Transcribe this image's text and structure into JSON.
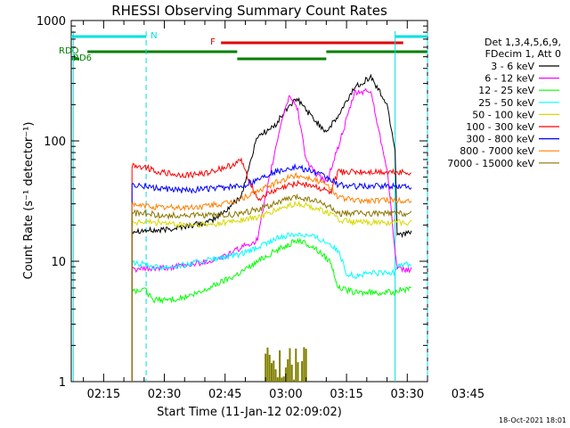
{
  "chart_data": {
    "type": "line",
    "title": "RHESSI Observing Summary Count Rates",
    "xlabel": "Start Time (11-Jan-12 02:09:02)",
    "ylabel": "Count Rate (s⁻¹ detector⁻¹)",
    "yscale": "log",
    "ylim": [
      1,
      1000
    ],
    "xlim_minutes": [
      -8,
      80
    ],
    "x_ticks": [
      "02:15",
      "02:30",
      "02:45",
      "03:00",
      "03:15",
      "03:30",
      "03:45"
    ],
    "x_tick_minutes": [
      0,
      15,
      30,
      45,
      60,
      75,
      90
    ],
    "y_ticks": [
      "1",
      "10",
      "100",
      "1000"
    ],
    "y_tick_values": [
      1,
      10,
      100,
      1000
    ],
    "legend_header": [
      "Det 1,3,4,5,6,9,",
      "FDecim 1, Att 0"
    ],
    "legend_position": "right",
    "flag_bars": [
      {
        "label": "N",
        "color": "#00e0e0",
        "segments": [
          [
            -8,
            10.5
          ],
          [
            72,
            90
          ]
        ],
        "level": "top"
      },
      {
        "label": "F",
        "color": "#e00000",
        "segments": [
          [
            29,
            74
          ]
        ],
        "level": "f"
      },
      {
        "label": "RDO",
        "color": "#008000",
        "segments": [
          [
            -4,
            33
          ],
          [
            55,
            80
          ]
        ],
        "level": "rdo"
      },
      {
        "label": "RD6",
        "color": "#008000",
        "segments": [
          [
            -8,
            -6
          ],
          [
            33,
            55
          ],
          [
            80,
            90
          ]
        ],
        "level": "rd6"
      }
    ],
    "vlines": [
      {
        "x": -7.5,
        "color": "#00e0e0",
        "style": "solid"
      },
      {
        "x": 10.5,
        "color": "#00e0e0",
        "style": "dashed"
      },
      {
        "x": 72,
        "color": "#00e0e0",
        "style": "solid"
      },
      {
        "x": 91,
        "color": "#00e0e0",
        "style": "dashed"
      }
    ],
    "series": [
      {
        "name": "3 - 6 keV",
        "color": "#000000",
        "x": [
          7,
          10.5,
          14,
          18,
          22,
          26,
          30,
          34,
          38,
          42,
          46,
          48,
          52,
          55,
          58,
          62,
          66,
          70,
          72,
          72.5,
          76
        ],
        "y": [
          18,
          18,
          18,
          19,
          20,
          21,
          26,
          35,
          110,
          130,
          200,
          220,
          150,
          120,
          160,
          280,
          340,
          200,
          85,
          17,
          17
        ]
      },
      {
        "name": "6 - 12 keV",
        "color": "#ff00ff",
        "x": [
          7,
          10.5,
          14,
          18,
          22,
          26,
          30,
          34,
          38,
          41,
          44,
          46,
          48,
          50,
          52,
          55,
          58,
          62,
          66,
          68,
          70,
          72,
          72.5,
          76
        ],
        "y": [
          8.6,
          8.6,
          8.7,
          9,
          9.5,
          10,
          11,
          13,
          15,
          50,
          150,
          240,
          180,
          70,
          55,
          45,
          90,
          250,
          260,
          120,
          60,
          12,
          8.5,
          8.5
        ]
      },
      {
        "name": "12 - 25 keV",
        "color": "#00ff00",
        "x": [
          7,
          10.5,
          12,
          16,
          20,
          24,
          28,
          32,
          36,
          40,
          44,
          48,
          52,
          56,
          58,
          62,
          66,
          70,
          72,
          72.5,
          76
        ],
        "y": [
          5.7,
          5.7,
          4.8,
          4.8,
          5,
          5.5,
          6.5,
          7.5,
          9,
          11,
          13,
          15,
          13,
          10,
          6,
          5.5,
          5.5,
          5.5,
          5.5,
          5.8,
          5.8
        ]
      },
      {
        "name": "25 - 50 keV",
        "color": "#00ffff",
        "x": [
          7,
          10.5,
          12,
          16,
          20,
          24,
          28,
          32,
          36,
          40,
          44,
          48,
          52,
          56,
          58,
          60,
          62,
          66,
          70,
          72,
          72.5,
          76
        ],
        "y": [
          9.5,
          9.5,
          9,
          9,
          9.3,
          10,
          10.5,
          11,
          12,
          14,
          16,
          17,
          16,
          14,
          12,
          8,
          7.5,
          8,
          8,
          8,
          9.5,
          9.5
        ]
      },
      {
        "name": "50 - 100 keV",
        "color": "#d8d800",
        "x": [
          7,
          10.5,
          14,
          18,
          22,
          26,
          30,
          34,
          38,
          42,
          46,
          48,
          52,
          56,
          58,
          62,
          66,
          70,
          72,
          72.5,
          76
        ],
        "y": [
          21,
          21,
          21,
          20,
          20,
          20,
          21,
          22,
          23,
          26,
          29,
          30,
          28,
          25,
          22,
          21,
          21,
          21,
          21,
          21,
          21
        ]
      },
      {
        "name": "100 - 300 keV",
        "color": "#ff0000",
        "x": [
          7,
          10.5,
          14,
          18,
          22,
          26,
          30,
          34,
          38,
          42,
          46,
          48,
          52,
          56,
          58,
          62,
          66,
          70,
          72,
          72.5,
          76
        ],
        "y": [
          63,
          60,
          55,
          52,
          52,
          55,
          60,
          68,
          33,
          38,
          43,
          45,
          42,
          37,
          55,
          55,
          55,
          55,
          55,
          55,
          55
        ]
      },
      {
        "name": "300 - 800 keV",
        "color": "#0000ff",
        "x": [
          7,
          10.5,
          14,
          18,
          22,
          26,
          30,
          34,
          38,
          42,
          46,
          48,
          52,
          56,
          58,
          62,
          66,
          70,
          72,
          72.5,
          76
        ],
        "y": [
          43,
          42,
          40,
          39,
          39,
          40,
          41,
          42,
          48,
          55,
          60,
          60,
          55,
          48,
          43,
          42,
          42,
          42,
          42,
          42,
          42
        ]
      },
      {
        "name": "800 - 7000 keV",
        "color": "#ff8000",
        "x": [
          7,
          10.5,
          14,
          18,
          22,
          26,
          30,
          34,
          38,
          42,
          46,
          48,
          52,
          56,
          58,
          62,
          66,
          70,
          72,
          72.5,
          76
        ],
        "y": [
          29,
          29,
          28,
          28,
          28,
          29,
          30,
          33,
          38,
          44,
          50,
          52,
          48,
          41,
          34,
          32,
          32,
          32,
          32,
          32,
          32
        ]
      },
      {
        "name": "7000 - 15000 keV",
        "color": "#8b7500",
        "x": [
          7,
          10.5,
          14,
          18,
          22,
          26,
          30,
          34,
          38,
          42,
          46,
          48,
          52,
          56,
          58,
          62,
          66,
          70,
          72,
          72.5,
          76
        ],
        "y": [
          25,
          25,
          24,
          24,
          24,
          24,
          24,
          25,
          27,
          30,
          33,
          34,
          32,
          28,
          25,
          25,
          25,
          25,
          25,
          25,
          25
        ]
      }
    ],
    "flare_flag": {
      "color": "#808000",
      "x_range": [
        40,
        50
      ],
      "max_value": 2
    }
  },
  "footer": {
    "date_stamp": "18-Oct-2021 18:01"
  }
}
